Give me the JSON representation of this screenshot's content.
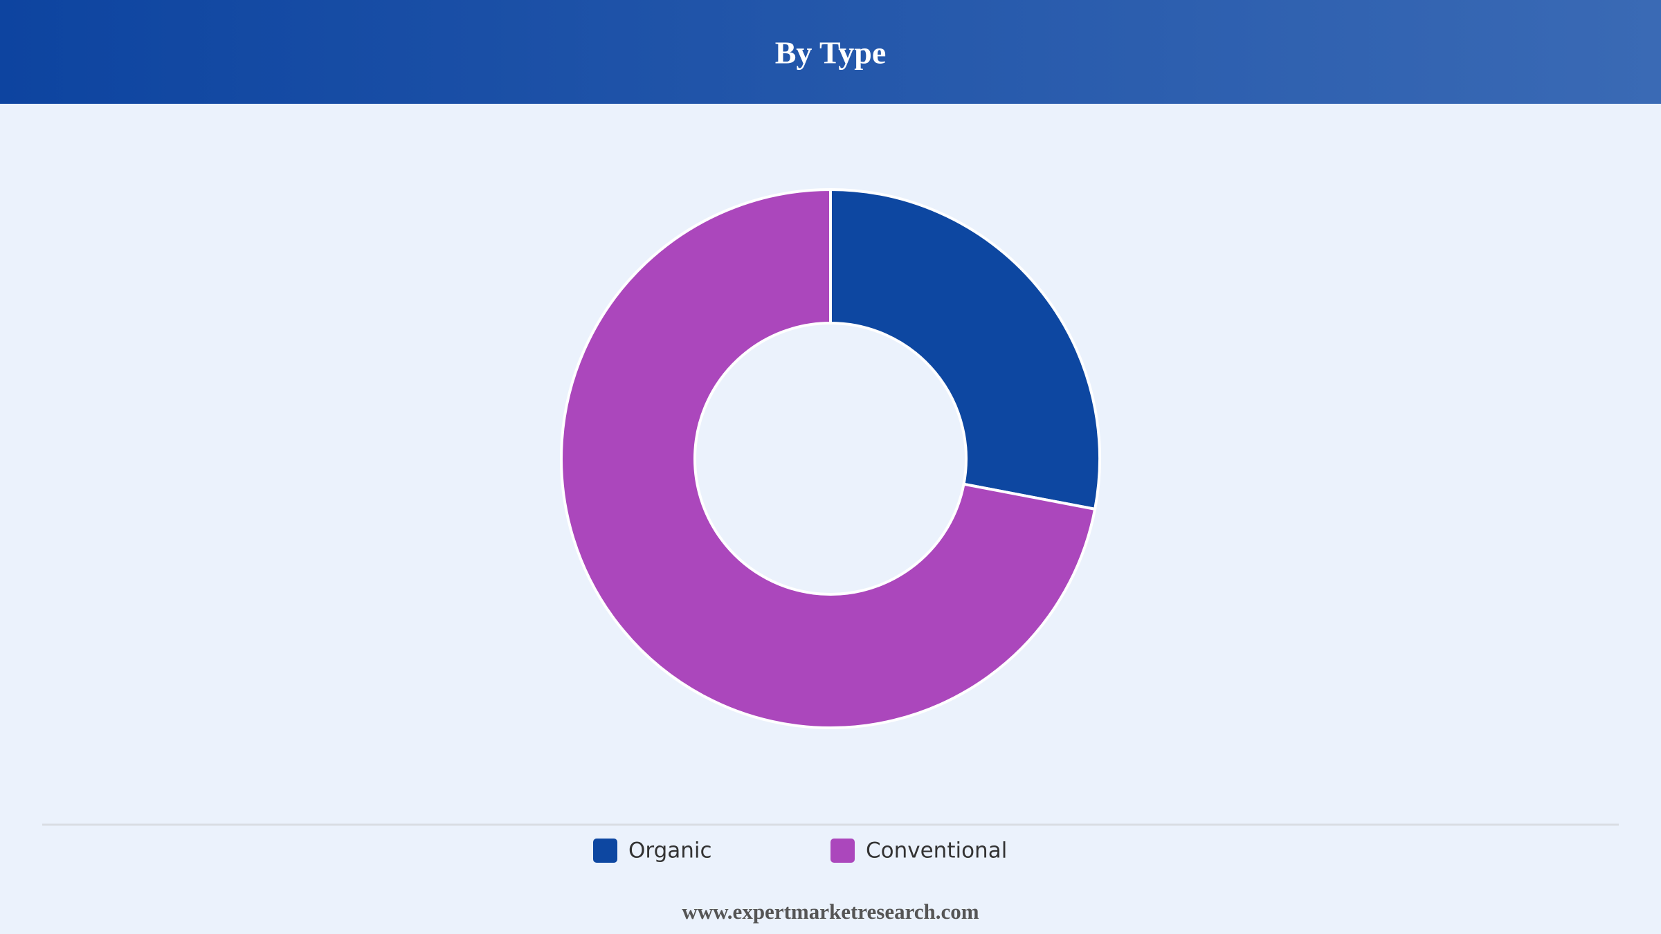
{
  "chart_data": {
    "type": "pie",
    "title": "By Type",
    "categories": [
      "Organic",
      "Conventional"
    ],
    "values": [
      28,
      72
    ],
    "colors": [
      "#0d47a1",
      "#ab47bc"
    ],
    "donut": true
  },
  "footer": "www.expertmarketresearch.com"
}
